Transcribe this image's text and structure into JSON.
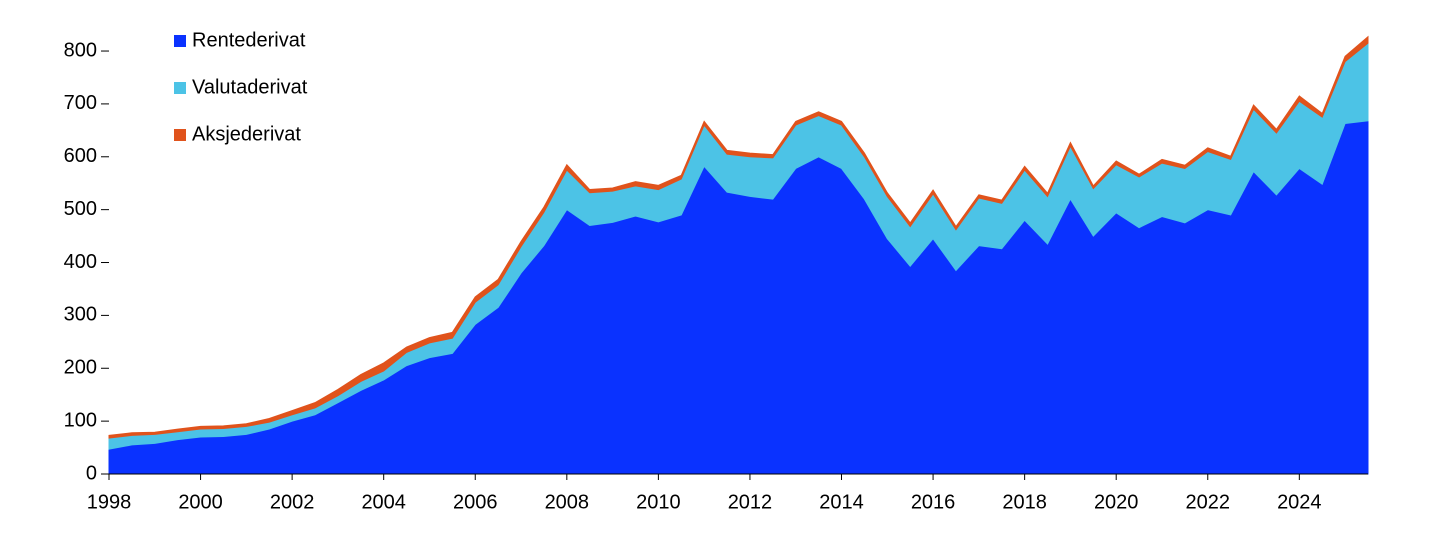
{
  "chart_data": {
    "type": "stacked-area",
    "x": [
      1998,
      1998.5,
      1999,
      1999.5,
      2000,
      2000.5,
      2001,
      2001.5,
      2002,
      2002.5,
      2003,
      2003.5,
      2004,
      2004.5,
      2005,
      2005.5,
      2006,
      2006.5,
      2007,
      2007.5,
      2008,
      2008.5,
      2009,
      2009.5,
      2010,
      2010.5,
      2011,
      2011.5,
      2012,
      2012.5,
      2013,
      2013.5,
      2014,
      2014.5,
      2015,
      2015.5,
      2016,
      2016.5,
      2017,
      2017.5,
      2018,
      2018.5,
      2019,
      2019.5,
      2020,
      2020.5,
      2021,
      2021.5,
      2022,
      2022.5,
      2023,
      2023.5,
      2024,
      2024.5,
      2025,
      2025.5
    ],
    "series": [
      {
        "name": "Rentederivat",
        "color": "#0a32ff",
        "values": [
          47,
          55,
          58,
          65,
          70,
          71,
          75,
          85,
          100,
          112,
          135,
          158,
          178,
          205,
          220,
          228,
          283,
          315,
          380,
          432,
          500,
          470,
          476,
          488,
          477,
          490,
          582,
          533,
          525,
          520,
          578,
          600,
          578,
          520,
          445,
          393,
          445,
          385,
          432,
          426,
          480,
          435,
          520,
          450,
          494,
          466,
          487,
          475,
          500,
          490,
          572,
          528,
          578,
          548,
          663,
          668
        ]
      },
      {
        "name": "Valutaderivat",
        "color": "#4cc3e6",
        "values": [
          21,
          18,
          17,
          15,
          15,
          15,
          15,
          13,
          12,
          13,
          13,
          17,
          17,
          25,
          28,
          29,
          42,
          43,
          50,
          63,
          75,
          62,
          59,
          57,
          61,
          68,
          78,
          72,
          75,
          78,
          82,
          78,
          82,
          80,
          80,
          75,
          85,
          77,
          90,
          86,
          95,
          90,
          100,
          90,
          91,
          96,
          101,
          103,
          110,
          105,
          118,
          117,
          127,
          127,
          117,
          147
        ]
      },
      {
        "name": "Aksjederivat",
        "color": "#e0531c",
        "values": [
          5,
          5,
          4,
          5,
          5,
          5,
          5,
          7,
          8,
          10,
          12,
          13,
          15,
          10,
          10,
          11,
          10,
          10,
          10,
          10,
          10,
          6,
          6,
          8,
          8,
          7,
          7,
          7,
          7,
          6,
          7,
          7,
          7,
          7,
          7,
          7,
          7,
          6,
          6,
          6,
          7,
          6,
          7,
          5,
          7,
          5,
          7,
          6,
          7,
          6,
          8,
          7,
          10,
          7,
          10,
          12
        ]
      }
    ],
    "xlim": [
      1998,
      2025.5
    ],
    "xticks": [
      1998,
      2000,
      2002,
      2004,
      2006,
      2008,
      2010,
      2012,
      2014,
      2016,
      2018,
      2020,
      2022,
      2024
    ],
    "ylim": [
      0,
      850
    ],
    "yticks": [
      0,
      100,
      200,
      300,
      400,
      500,
      600,
      700,
      800
    ],
    "legend": "top-left"
  }
}
